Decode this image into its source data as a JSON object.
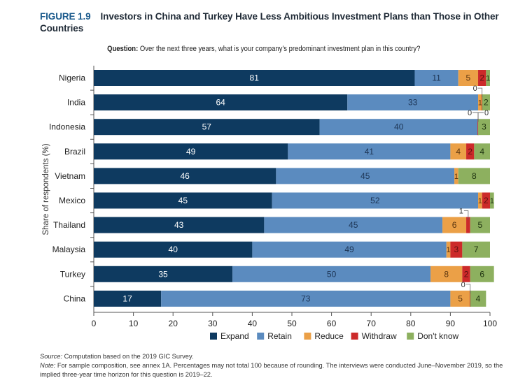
{
  "figure": {
    "number": "FIGURE 1.9",
    "title": "Investors in China and Turkey Have Less Ambitious Investment Plans than Those in Other Countries",
    "question_label": "Question:",
    "question_text": "Over the next three years, what is your company’s predominant  investment plan in this country?"
  },
  "notes": {
    "source_label": "Source:",
    "source_text": "Computation based on the 2019 GIC Survey.",
    "note_label": "Note:",
    "note_text": "For sample composition, see annex 1A. Percentages may not total 100 because of rounding. The interviews were conducted June–November 2019, so the implied three-year time horizon for this question is 2019–22."
  },
  "chart_data": {
    "type": "bar",
    "orientation": "horizontal",
    "stacked": true,
    "title": "Investors in China and Turkey Have Less Ambitious Investment Plans than Those in Other Countries",
    "xlabel": "",
    "ylabel": "Share of respondents (%)",
    "xlim": [
      0,
      100
    ],
    "xticks": [
      "0",
      "10",
      "20",
      "30",
      "40",
      "50",
      "60",
      "70",
      "80",
      "90",
      "100"
    ],
    "grid": false,
    "legend_position": "bottom",
    "categories": [
      "Nigeria",
      "India",
      "Indonesia",
      "Brazil",
      "Vietnam",
      "Mexico",
      "Thailand",
      "Malaysia",
      "Turkey",
      "China"
    ],
    "series": [
      {
        "name": "Expand",
        "color": "#0e3a60",
        "label_color": "#ffffff",
        "values": [
          81,
          64,
          57,
          49,
          46,
          45,
          43,
          40,
          35,
          17
        ]
      },
      {
        "name": "Retain",
        "color": "#5b8bbf",
        "label_color": "#1d3555",
        "values": [
          11,
          33,
          40,
          41,
          45,
          52,
          45,
          49,
          50,
          73
        ]
      },
      {
        "name": "Reduce",
        "color": "#eba047",
        "label_color": "#5a3510",
        "values": [
          5,
          1,
          0,
          4,
          1,
          1,
          6,
          1,
          8,
          5
        ]
      },
      {
        "name": "Withdraw",
        "color": "#cc2a2a",
        "label_color": "#5a1010",
        "values": [
          2,
          0,
          0,
          2,
          0,
          2,
          1,
          3,
          2,
          0
        ]
      },
      {
        "name": "Don't know",
        "color": "#8db05f",
        "label_color": "#1e3310",
        "values": [
          1,
          2,
          3,
          4,
          8,
          1,
          5,
          7,
          6,
          4
        ]
      }
    ],
    "callouts": [
      {
        "category": "India",
        "series": "Withdraw",
        "text": "0"
      },
      {
        "category": "Indonesia",
        "series": "Reduce",
        "text": "0"
      },
      {
        "category": "Indonesia",
        "series": "Withdraw",
        "text": "0"
      },
      {
        "category": "Thailand",
        "series": "Withdraw",
        "text": "1"
      },
      {
        "category": "China",
        "series": "Withdraw",
        "text": "0"
      }
    ]
  }
}
